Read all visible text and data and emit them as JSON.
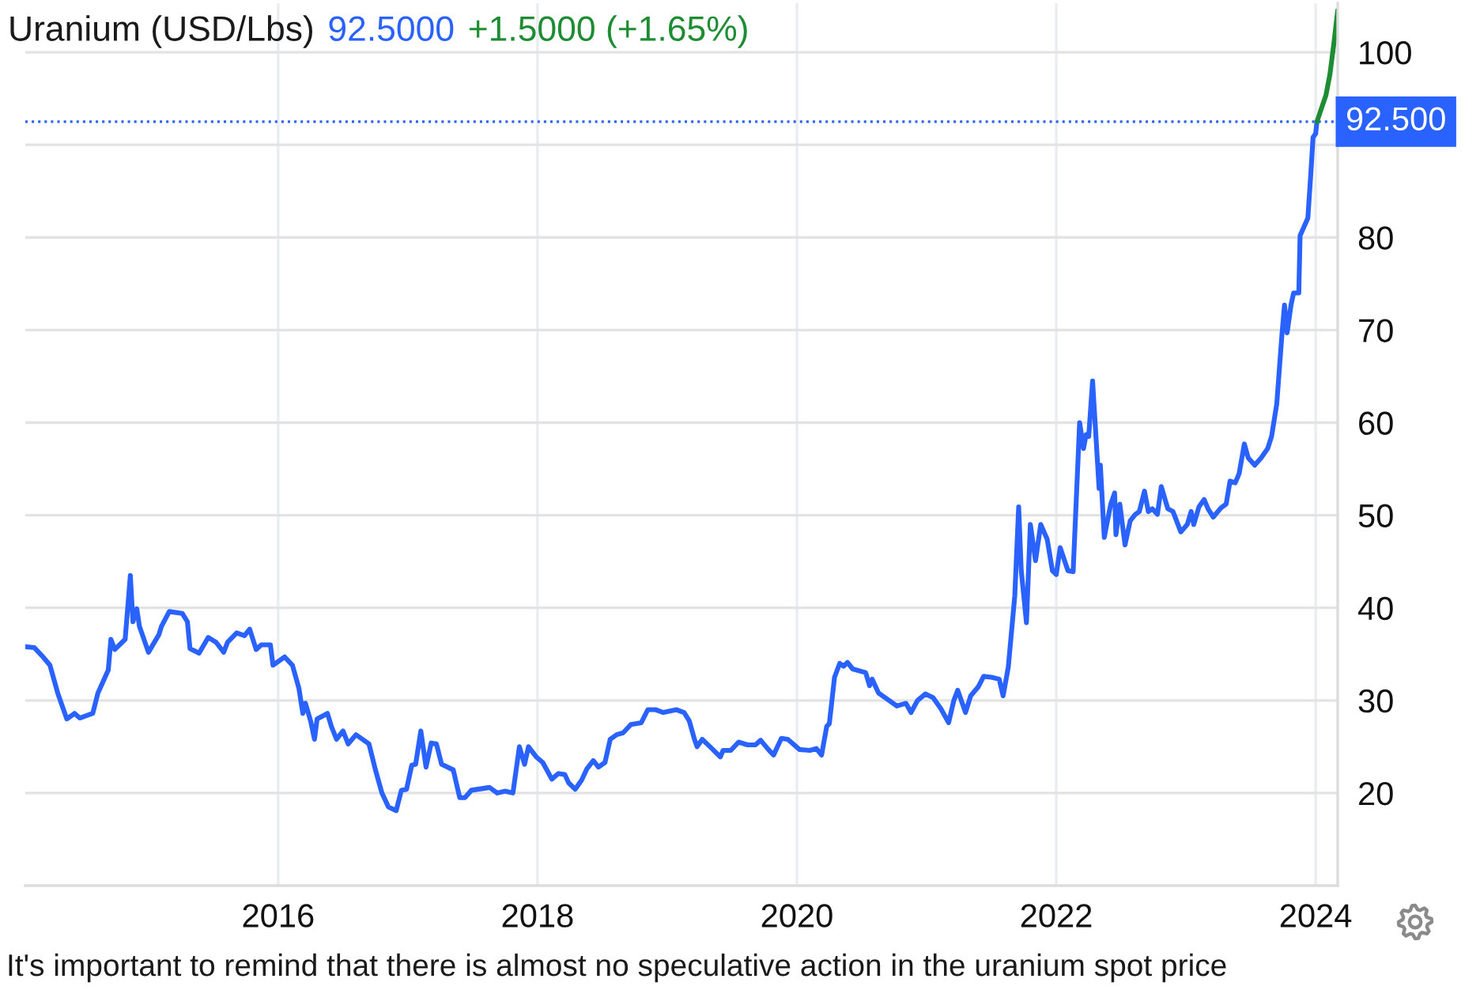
{
  "chart_data": {
    "type": "line",
    "title": "Uranium (USD/Lbs)",
    "annotations": [
      "92.5000",
      "+1.5000 (+1.65%)",
      "It's important to remind that there is almost no speculative action in the uranium spot price"
    ],
    "series": [
      {
        "color": "#2962ff",
        "x": [
          2014.05,
          2014.12,
          2014.18,
          2014.24,
          2014.3,
          2014.37,
          2014.43,
          2014.47,
          2014.57,
          2014.61,
          2014.69,
          2014.71,
          2014.74,
          2014.82,
          2014.86,
          2014.88,
          2014.91,
          2014.93,
          2015.0,
          2015.08,
          2015.1,
          2015.16,
          2015.26,
          2015.3,
          2015.32,
          2015.39,
          2015.46,
          2015.52,
          2015.58,
          2015.61,
          2015.68,
          2015.74,
          2015.78,
          2015.83,
          2015.87,
          2015.94,
          2015.96,
          2016.05,
          2016.11,
          2016.16,
          2016.19,
          2016.21,
          2016.25,
          2016.28,
          2016.3,
          2016.38,
          2016.41,
          2016.45,
          2016.5,
          2016.54,
          2016.6,
          2016.7,
          2016.75,
          2016.8,
          2016.85,
          2016.91,
          2016.95,
          2016.99,
          2017.03,
          2017.06,
          2017.1,
          2017.14,
          2017.18,
          2017.22,
          2017.26,
          2017.35,
          2017.4,
          2017.44,
          2017.49,
          2017.63,
          2017.69,
          2017.75,
          2017.81,
          2017.86,
          2017.9,
          2017.93,
          2017.99,
          2018.04,
          2018.11,
          2018.16,
          2018.21,
          2018.24,
          2018.29,
          2018.34,
          2018.38,
          2018.43,
          2018.47,
          2018.52,
          2018.56,
          2018.61,
          2018.66,
          2018.72,
          2018.8,
          2018.85,
          2018.91,
          2018.97,
          2019.07,
          2019.13,
          2019.17,
          2019.21,
          2019.23,
          2019.27,
          2019.33,
          2019.41,
          2019.43,
          2019.49,
          2019.55,
          2019.62,
          2019.68,
          2019.72,
          2019.78,
          2019.82,
          2019.88,
          2019.93,
          2020.02,
          2020.1,
          2020.15,
          2020.19,
          2020.23,
          2020.25,
          2020.29,
          2020.33,
          2020.36,
          2020.39,
          2020.43,
          2020.53,
          2020.56,
          2020.58,
          2020.63,
          2020.71,
          2020.77,
          2020.84,
          2020.88,
          2020.93,
          2020.99,
          2021.05,
          2021.11,
          2021.17,
          2021.21,
          2021.24,
          2021.3,
          2021.34,
          2021.4,
          2021.44,
          2021.5,
          2021.56,
          2021.59,
          2021.63,
          2021.68,
          2021.71,
          2021.73,
          2021.77,
          2021.8,
          2021.84,
          2021.88,
          2021.93,
          2021.97,
          2022.0,
          2022.03,
          2022.09,
          2022.13,
          2022.18,
          2022.21,
          2022.23,
          2022.25,
          2022.28,
          2022.33,
          2022.34,
          2022.37,
          2022.42,
          2022.45,
          2022.46,
          2022.49,
          2022.53,
          2022.57,
          2022.61,
          2022.64,
          2022.68,
          2022.71,
          2022.74,
          2022.78,
          2022.81,
          2022.86,
          2022.9,
          2022.96,
          2023.01,
          2023.04,
          2023.06,
          2023.1,
          2023.14,
          2023.17,
          2023.21,
          2023.27,
          2023.31,
          2023.34,
          2023.38,
          2023.41,
          2023.45,
          2023.48,
          2023.53,
          2023.58,
          2023.63,
          2023.66,
          2023.7,
          2023.74,
          2023.76,
          2023.78,
          2023.81,
          2023.83,
          2023.87,
          2023.88,
          2023.94,
          2023.96,
          2023.98,
          2024.0,
          2024.01
        ],
        "values": [
          35.8,
          35.7,
          34.8,
          33.8,
          30.8,
          28.0,
          28.6,
          28.1,
          28.6,
          30.8,
          33.3,
          36.6,
          35.5,
          36.6,
          43.5,
          38.5,
          39.9,
          38.0,
          35.2,
          37.1,
          38.0,
          39.6,
          39.4,
          38.5,
          35.6,
          35.1,
          36.8,
          36.3,
          35.2,
          36.3,
          37.3,
          37.0,
          37.7,
          35.5,
          36.0,
          36.0,
          33.8,
          34.7,
          33.8,
          31.3,
          28.6,
          29.7,
          27.8,
          25.8,
          28.0,
          28.6,
          27.2,
          25.8,
          26.7,
          25.3,
          26.3,
          25.3,
          22.5,
          20.0,
          18.5,
          18.1,
          20.3,
          20.4,
          23.0,
          23.1,
          26.7,
          22.8,
          25.4,
          25.3,
          23.1,
          22.5,
          19.5,
          19.5,
          20.3,
          20.6,
          20.0,
          20.2,
          20.0,
          25.0,
          23.1,
          25.0,
          23.9,
          23.3,
          21.5,
          22.1,
          22.0,
          21.1,
          20.4,
          21.4,
          22.6,
          23.5,
          22.8,
          23.3,
          25.8,
          26.3,
          26.5,
          27.4,
          27.6,
          29.0,
          29.0,
          28.7,
          29.0,
          28.7,
          27.8,
          25.8,
          25.0,
          25.8,
          25.0,
          23.9,
          24.6,
          24.6,
          25.5,
          25.2,
          25.2,
          25.7,
          24.7,
          24.1,
          25.9,
          25.8,
          24.7,
          24.6,
          24.8,
          24.1,
          27.2,
          27.5,
          32.5,
          34.0,
          33.7,
          34.1,
          33.4,
          33.0,
          31.6,
          32.3,
          30.8,
          30.0,
          29.4,
          29.7,
          28.7,
          30.0,
          30.7,
          30.3,
          29.1,
          27.6,
          30.0,
          31.1,
          28.7,
          30.5,
          31.5,
          32.6,
          32.5,
          32.3,
          30.5,
          33.6,
          41.3,
          50.9,
          44.0,
          38.4,
          49.0,
          45.1,
          49.0,
          47.4,
          44.0,
          43.6,
          46.5,
          44.0,
          43.9,
          60.0,
          57.2,
          58.7,
          58.5,
          64.5,
          52.9,
          55.4,
          47.6,
          51.2,
          52.4,
          47.9,
          51.2,
          46.8,
          49.4,
          50.1,
          50.4,
          52.6,
          50.4,
          50.7,
          50.1,
          53.1,
          50.7,
          50.4,
          48.2,
          49.0,
          50.4,
          49.0,
          50.9,
          51.7,
          50.7,
          49.8,
          50.8,
          51.2,
          53.7,
          53.5,
          54.5,
          57.7,
          56.2,
          55.4,
          56.2,
          57.2,
          58.5,
          62.0,
          69.5,
          72.7,
          69.7,
          72.7,
          74.0,
          74.0,
          80.2,
          82.1,
          86.3,
          90.8,
          91.2,
          92.5
        ]
      },
      {
        "color": "#1e8c32",
        "x": [
          2024.01,
          2024.08,
          2024.11,
          2024.14,
          2024.17
        ],
        "values": [
          92.5,
          95.4,
          97.6,
          100.9,
          104.5
        ]
      }
    ],
    "xlim": [
      2014.05,
      2024.17
    ],
    "xticks": [
      2016,
      2018,
      2020,
      2022,
      2024
    ],
    "ylim": [
      10,
      105.3
    ],
    "yticks": [
      20,
      30,
      40,
      50,
      60,
      70,
      80,
      {
        "value": 90,
        "label": null
      },
      100
    ],
    "ref_lines": [
      {
        "axis": "y",
        "value": 92.5,
        "label": "92.500",
        "color": "#2962ff",
        "line_style": "dotted"
      }
    ],
    "grid": true
  }
}
